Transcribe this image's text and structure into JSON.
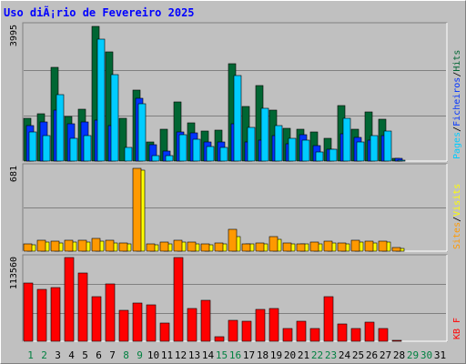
{
  "title": "Uso diÃ¡rio de Fevereiro 2025",
  "colors": {
    "hits": "#006633",
    "files": "#0033ff",
    "pages": "#00ccff",
    "visits": "#ffff00",
    "sites": "#ff9900",
    "kbytes": "#ff0000",
    "weekend_label": "#008040",
    "weekday_label": "#000000"
  },
  "chart_data": [
    {
      "type": "bar",
      "panel": "requests",
      "ymax_label": "3995",
      "ylim": [
        0,
        3995
      ],
      "legend": [
        {
          "key": "hits",
          "label": "Hits",
          "color": "#006633"
        },
        {
          "key": "files",
          "label": "Ficheiros",
          "color": "#0033ff"
        },
        {
          "key": "pages",
          "label": "Pages",
          "color": "#00ccff"
        }
      ],
      "separator": "/",
      "categories": [
        "1",
        "2",
        "3",
        "4",
        "5",
        "6",
        "7",
        "8",
        "9",
        "10",
        "11",
        "12",
        "13",
        "14",
        "15",
        "16",
        "17",
        "18",
        "19",
        "20",
        "21",
        "22",
        "23",
        "24",
        "25",
        "26",
        "27",
        "28",
        "29",
        "30",
        "31"
      ],
      "weekend_days": [
        "1",
        "2",
        "8",
        "9",
        "15",
        "16",
        "22",
        "23",
        "29",
        "30"
      ],
      "series": [
        {
          "key": "hits",
          "values": [
            1260,
            1390,
            2760,
            1310,
            1530,
            3980,
            3230,
            1260,
            2100,
            560,
            940,
            1740,
            1120,
            880,
            910,
            2880,
            1620,
            2230,
            1500,
            970,
            950,
            870,
            660,
            1630,
            940,
            1440,
            1240,
            90,
            0,
            0,
            0
          ]
        },
        {
          "key": "files",
          "values": [
            1050,
            1160,
            1490,
            1090,
            1150,
            1210,
            1050,
            0,
            1840,
            480,
            300,
            870,
            820,
            550,
            560,
            1090,
            560,
            610,
            760,
            500,
            790,
            450,
            340,
            800,
            710,
            620,
            740,
            70,
            0,
            0,
            0
          ]
        },
        {
          "key": "pages",
          "values": [
            870,
            740,
            1950,
            660,
            760,
            3580,
            2540,
            410,
            1700,
            170,
            150,
            780,
            650,
            440,
            390,
            2520,
            1000,
            1560,
            1040,
            660,
            610,
            260,
            360,
            1260,
            560,
            750,
            880,
            40,
            0,
            0,
            0
          ]
        }
      ]
    },
    {
      "type": "bar",
      "panel": "visitors",
      "ymax_label": "681",
      "ylim": [
        0,
        681
      ],
      "legend": [
        {
          "key": "visits",
          "label": "Visits",
          "color": "#ffff00"
        },
        {
          "key": "sites",
          "label": "Sites",
          "color": "#ff9900"
        }
      ],
      "separator": "/",
      "categories": [
        "1",
        "2",
        "3",
        "4",
        "5",
        "6",
        "7",
        "8",
        "9",
        "10",
        "11",
        "12",
        "13",
        "14",
        "15",
        "16",
        "17",
        "18",
        "19",
        "20",
        "21",
        "22",
        "23",
        "24",
        "25",
        "26",
        "27",
        "28",
        "29",
        "30",
        "31"
      ],
      "series": [
        {
          "key": "visits",
          "values": [
            50,
            70,
            65,
            70,
            75,
            80,
            65,
            58,
            655,
            48,
            55,
            70,
            58,
            50,
            55,
            115,
            55,
            60,
            95,
            55,
            55,
            58,
            65,
            58,
            72,
            68,
            70,
            25,
            0,
            0,
            0
          ]
        },
        {
          "key": "sites",
          "values": [
            60,
            88,
            78,
            85,
            88,
            100,
            88,
            68,
            670,
            55,
            70,
            90,
            72,
            58,
            65,
            176,
            60,
            68,
            120,
            65,
            62,
            72,
            78,
            65,
            85,
            78,
            80,
            32,
            0,
            0,
            0
          ]
        }
      ]
    },
    {
      "type": "bar",
      "panel": "traffic",
      "ymax_label": "113560",
      "ylim": [
        0,
        113560
      ],
      "legend": [
        {
          "key": "kbytes",
          "label": "KB F",
          "color": "#ff0000"
        }
      ],
      "categories": [
        "1",
        "2",
        "3",
        "4",
        "5",
        "6",
        "7",
        "8",
        "9",
        "10",
        "11",
        "12",
        "13",
        "14",
        "15",
        "16",
        "17",
        "18",
        "19",
        "20",
        "21",
        "22",
        "23",
        "24",
        "25",
        "26",
        "27",
        "28",
        "29",
        "30",
        "31"
      ],
      "series": [
        {
          "key": "kbytes",
          "values": [
            78500,
            70600,
            72700,
            113400,
            92900,
            60300,
            77400,
            41700,
            52400,
            49800,
            24400,
            113300,
            44900,
            56100,
            6200,
            28000,
            27500,
            42600,
            44000,
            17200,
            27600,
            17500,
            60600,
            23700,
            17200,
            25400,
            17000,
            1800,
            0,
            0,
            0
          ]
        }
      ]
    }
  ]
}
